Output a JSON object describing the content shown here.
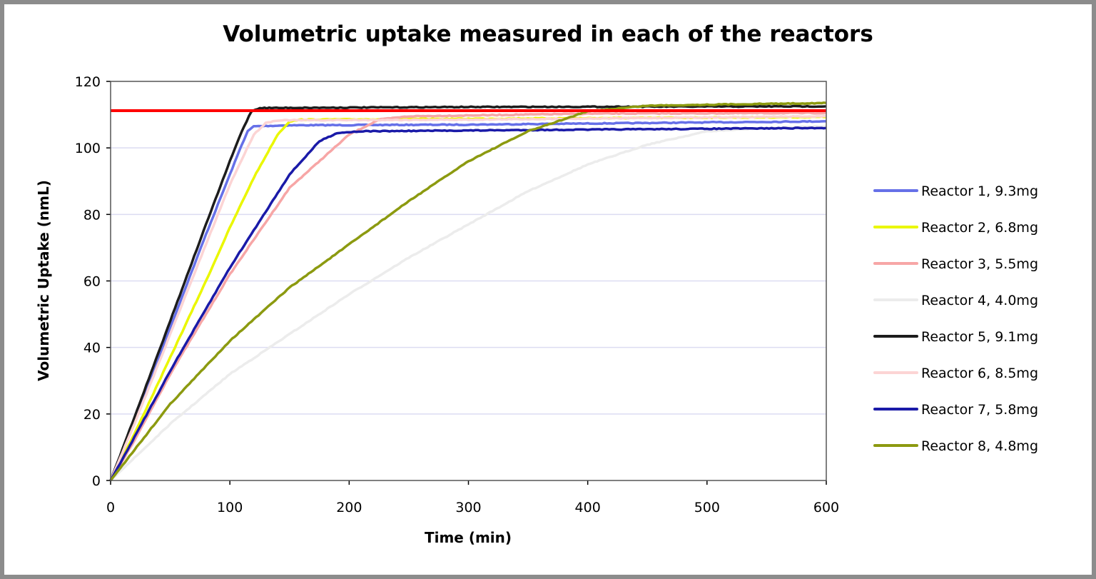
{
  "chart_data": {
    "type": "line",
    "title": "Volumetric uptake measured in each of the reactors",
    "xlabel": "Time (min)",
    "ylabel": "Volumetric Uptake (nmL)",
    "xlim": [
      0,
      600
    ],
    "ylim": [
      0,
      120
    ],
    "xticks": [
      0,
      100,
      200,
      300,
      400,
      500,
      600
    ],
    "yticks": [
      0,
      20,
      40,
      60,
      80,
      100,
      120
    ],
    "grid": "horizontal",
    "legend_position": "right",
    "reference_line": {
      "y": 111.2,
      "color": "#ff0000"
    },
    "series": [
      {
        "name": "Reactor 1, 9.3mg",
        "color": "#6670e8",
        "x": [
          0,
          20,
          50,
          80,
          100,
          110,
          115,
          120,
          150,
          300,
          450,
          600
        ],
        "y": [
          0,
          18,
          46,
          74,
          92,
          101,
          105,
          106.5,
          106.8,
          107,
          107.5,
          108
        ]
      },
      {
        "name": "Reactor 2, 6.8mg",
        "color": "#eaf700",
        "x": [
          0,
          20,
          50,
          80,
          100,
          120,
          140,
          150,
          160,
          600
        ],
        "y": [
          0,
          14,
          37,
          60,
          76,
          91,
          104,
          108,
          108.5,
          109.3
        ]
      },
      {
        "name": "Reactor 3, 5.5mg",
        "color": "#f7a6a6",
        "x": [
          0,
          20,
          50,
          100,
          150,
          200,
          225,
          250,
          400,
          600
        ],
        "y": [
          0,
          12,
          32,
          62,
          88,
          104,
          108.5,
          109.5,
          110.3,
          110.5
        ]
      },
      {
        "name": "Reactor 4, 4.0mg",
        "color": "#ececec",
        "x": [
          0,
          50,
          100,
          150,
          200,
          250,
          300,
          350,
          400,
          450,
          500,
          550,
          600
        ],
        "y": [
          0,
          17,
          32,
          44,
          56,
          67,
          77,
          87,
          95,
          101,
          105,
          106,
          106.5
        ]
      },
      {
        "name": "Reactor 5, 9.1mg",
        "color": "#1c1c1c",
        "x": [
          0,
          20,
          50,
          80,
          100,
          110,
          118,
          125,
          300,
          600
        ],
        "y": [
          0,
          19,
          48,
          77,
          96,
          105,
          111,
          112,
          112.3,
          112.5
        ]
      },
      {
        "name": "Reactor 6, 8.5mg",
        "color": "#fcd4d4",
        "x": [
          0,
          20,
          50,
          80,
          100,
          120,
          130,
          140,
          300,
          600
        ],
        "y": [
          0,
          17,
          44,
          71,
          89,
          104,
          107.5,
          108.3,
          108.5,
          109.5
        ]
      },
      {
        "name": "Reactor 7, 5.8mg",
        "color": "#1a1aa8",
        "x": [
          0,
          20,
          50,
          100,
          150,
          175,
          190,
          210,
          400,
          600
        ],
        "y": [
          0,
          13,
          33,
          64,
          92,
          102,
          104.5,
          105,
          105.5,
          106
        ]
      },
      {
        "name": "Reactor 8, 4.8mg",
        "color": "#8c9a10",
        "x": [
          0,
          50,
          100,
          150,
          200,
          250,
          300,
          350,
          400,
          450,
          500,
          600
        ],
        "y": [
          0,
          23,
          42,
          58,
          71,
          84,
          96,
          105,
          111,
          112.7,
          113,
          113.5
        ]
      }
    ]
  }
}
